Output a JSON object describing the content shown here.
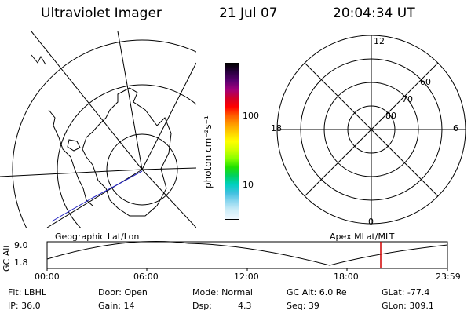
{
  "header": {
    "title": "Ultraviolet Imager",
    "date": "21 Jul 07",
    "time": "20:04:34 UT"
  },
  "colorbar": {
    "unit_label": "photon cm⁻²s⁻¹",
    "ticks": [
      "100",
      "10"
    ],
    "colors": [
      "#000000",
      "#2a0040",
      "#5a0070",
      "#a0007a",
      "#d0002a",
      "#ff0000",
      "#ff5a00",
      "#ff9a00",
      "#ffd000",
      "#ffff00",
      "#d0ff00",
      "#8aff00",
      "#20e000",
      "#00d060",
      "#00d0c0",
      "#40c0e0",
      "#90d8f0",
      "#d0eef8",
      "#f0f8ff"
    ]
  },
  "left_map": {
    "caption": "Geographic Lat/Lon"
  },
  "right_map": {
    "caption": "Apex MLat/MLT",
    "mlt_labels": {
      "top": "12",
      "left": "18",
      "right": "6",
      "bottom": "0"
    },
    "mlat_labels": [
      "60",
      "70",
      "80"
    ]
  },
  "altitude_plot": {
    "ylabel": "GC Alt",
    "yticks": [
      "9.0",
      "1.8"
    ],
    "xticks": [
      "00:00",
      "06:00",
      "12:00",
      "18:00",
      "23:59"
    ],
    "current_time_marker_color": "#d00000"
  },
  "info": {
    "filter": "Flt: LBHL",
    "ip": "IP: 36.0",
    "door": "Door: Open",
    "gain": "Gain: 14",
    "mode": "Mode: Normal",
    "dsp_label": "Dsp:",
    "dsp_value": "4.3",
    "gc_alt": "GC Alt: 6.0 Re",
    "seq": "Seq: 39",
    "glat": "GLat: -77.4",
    "glon": "GLon: 309.1"
  }
}
